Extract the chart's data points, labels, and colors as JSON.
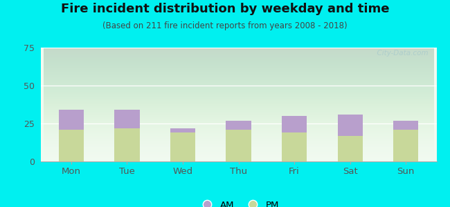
{
  "title": "Fire incident distribution by weekday and time",
  "subtitle": "(Based on 211 fire incident reports from years 2008 - 2018)",
  "days": [
    "Mon",
    "Tue",
    "Wed",
    "Thu",
    "Fri",
    "Sat",
    "Sun"
  ],
  "pm_values": [
    21,
    22,
    19,
    21,
    19,
    17,
    21
  ],
  "am_values": [
    13,
    12,
    3,
    6,
    11,
    14,
    6
  ],
  "pm_color": "#c8d89a",
  "am_color": "#b89fcc",
  "ylim": [
    0,
    75
  ],
  "yticks": [
    0,
    25,
    50,
    75
  ],
  "background_color": "#00f0f0",
  "bar_width": 0.45,
  "title_fontsize": 13,
  "subtitle_fontsize": 8.5,
  "watermark": "  City-Data.com",
  "tick_color": "#555555",
  "grid_color": "#ffffff"
}
